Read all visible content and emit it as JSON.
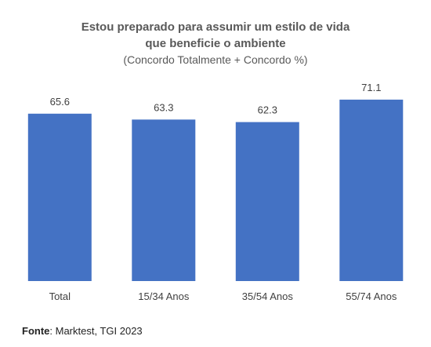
{
  "chart_data": {
    "type": "bar",
    "title": "Estou preparado para assumir um estilo de vida que beneficie o ambiente",
    "title_lines": [
      "Estou preparado para assumir um estilo de vida",
      "que beneficie o ambiente"
    ],
    "subtitle": "(Concordo Totalmente + Concordo %)",
    "categories": [
      "Total",
      "15/34 Anos",
      "35/54 Anos",
      "55/74 Anos"
    ],
    "values": [
      65.6,
      63.3,
      62.3,
      71.1
    ],
    "value_labels": [
      "65.6",
      "63.3",
      "62.3",
      "71.1"
    ],
    "xlabel": "",
    "ylabel": "",
    "ylim": [
      0,
      80
    ],
    "grid": false,
    "legend": "none",
    "bar_color": "#4472C4"
  },
  "source": {
    "label": "Fonte",
    "text": "Marktest, TGI 2023"
  }
}
